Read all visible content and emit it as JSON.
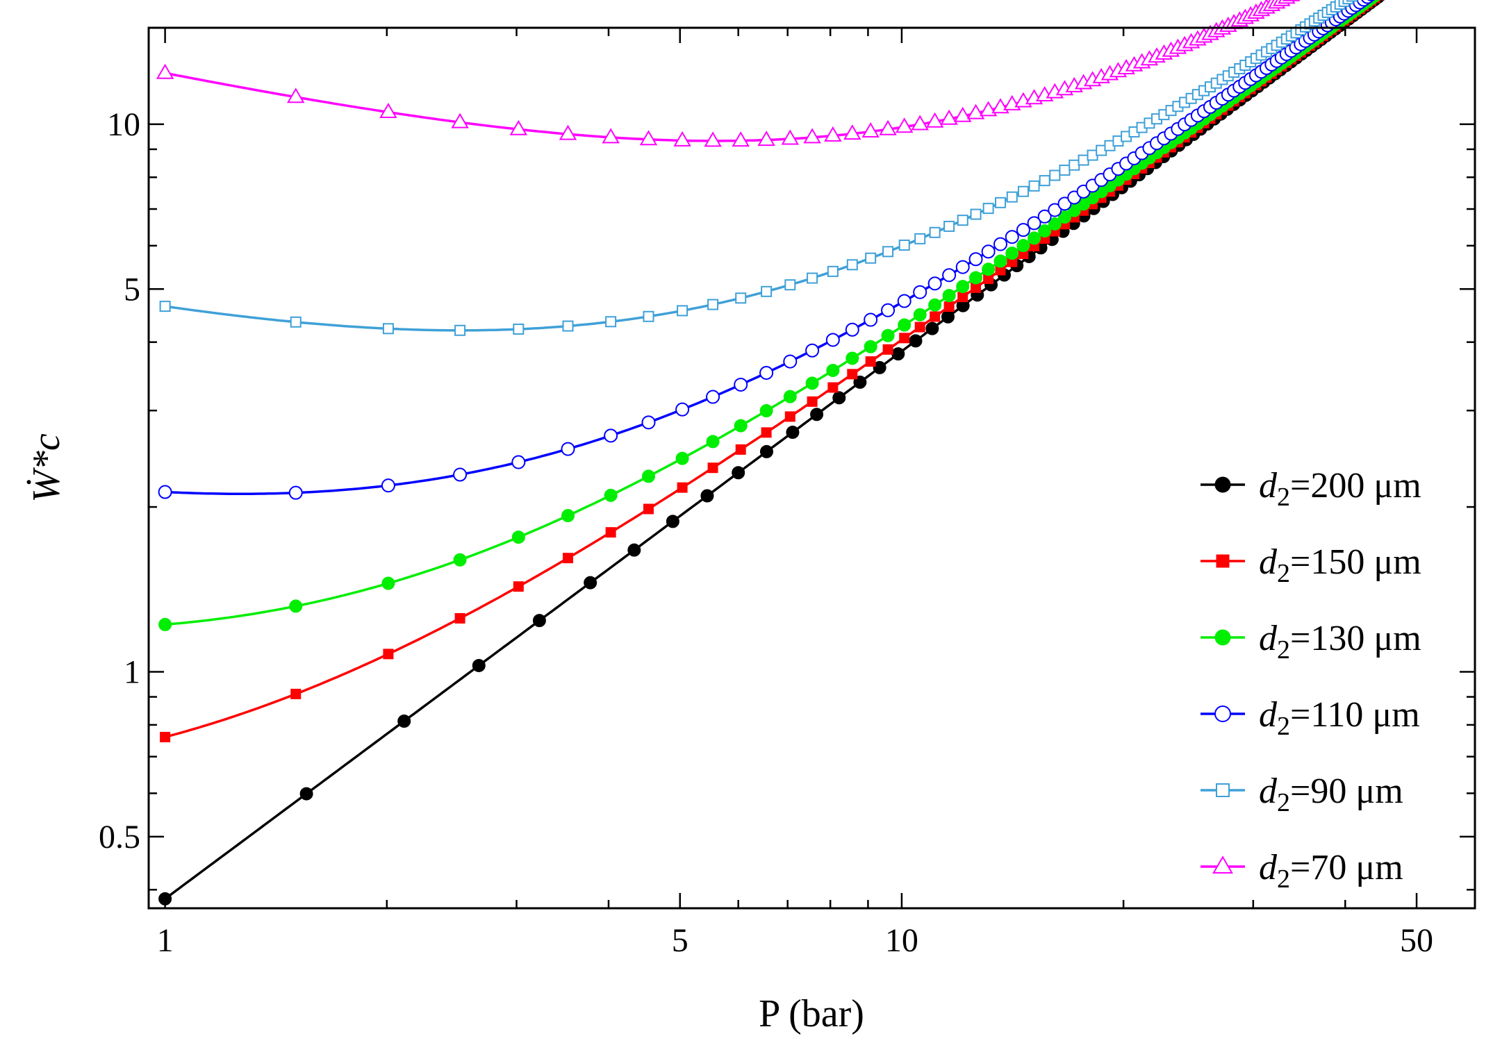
{
  "chart_data": {
    "type": "scatter",
    "title": "",
    "xlabel": "P (bar)",
    "ylabel": "Ẇ*c",
    "xscale": "log",
    "yscale": "log",
    "xlim": [
      0.95,
      60
    ],
    "ylim": [
      0.37,
      15
    ],
    "xticks": [
      {
        "value": 1,
        "label": "1"
      },
      {
        "value": 5,
        "label": "5"
      },
      {
        "value": 10,
        "label": "10"
      },
      {
        "value": 50,
        "label": "50"
      }
    ],
    "yticks": [
      {
        "value": 0.5,
        "label": "0.5"
      },
      {
        "value": 1,
        "label": "1"
      },
      {
        "value": 5,
        "label": "5"
      },
      {
        "value": 10,
        "label": "10"
      }
    ],
    "legend_position": "right",
    "series": [
      {
        "name": "d2=200 μm",
        "label_var": "d",
        "label_sub": "2",
        "label_rest": "=200 μm",
        "color": "#000000",
        "marker": "filled-circle",
        "a": 0.385,
        "b": 0.0,
        "c": 0.3,
        "n": 100
      },
      {
        "name": "d2=150 μm",
        "label_var": "d",
        "label_sub": "2",
        "label_rest": "=150 μm",
        "color": "#ff0000",
        "marker": "filled-square",
        "a": 0.385,
        "b": 0.375,
        "c": 0.3,
        "n": 110
      },
      {
        "name": "d2=130 μm",
        "label_var": "d",
        "label_sub": "2",
        "label_rest": "=130 μm",
        "color": "#00ee00",
        "marker": "filled-circle",
        "a": 0.385,
        "b": 0.835,
        "c": 0.3,
        "n": 110
      },
      {
        "name": "d2=110 μm",
        "label_var": "d",
        "label_sub": "2",
        "label_rest": "=110 μm",
        "color": "#0000ff",
        "marker": "open-circle",
        "a": 0.385,
        "b": 1.745,
        "c": 0.3,
        "n": 110
      },
      {
        "name": "d2=90 μm",
        "label_var": "d",
        "label_sub": "2",
        "label_rest": "=90 μm",
        "color": "#3fa0d8",
        "marker": "open-square",
        "a": 0.385,
        "b": 4.265,
        "c": 0.3,
        "n": 110
      },
      {
        "name": "d2=70 μm",
        "label_var": "d",
        "label_sub": "2",
        "label_rest": "=70 μm",
        "color": "#ff00ff",
        "marker": "open-triangle",
        "a": 0.385,
        "b": 12.015,
        "c": 0.3,
        "n": 110
      }
    ],
    "curve_model": "W = a*P + b/P^c, P from 1 to 56 bar"
  }
}
